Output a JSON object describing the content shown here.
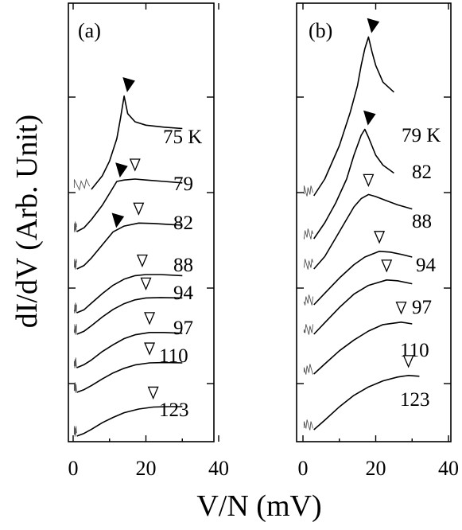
{
  "chart_data": [
    {
      "type": "line",
      "panel_label": "(a)",
      "xlabel": "V/N (mV)",
      "ylabel": "dI/dV (Arb. Unit)",
      "xlim": [
        0,
        40
      ],
      "x_ticks": [
        "0",
        "20",
        "40"
      ],
      "y_tick_labels": false,
      "offset_curves": true,
      "series": [
        {
          "name": "75 K",
          "peak": {
            "x": 14,
            "marker": "filled"
          },
          "x": [
            5,
            8,
            10,
            12,
            13,
            14,
            15,
            17,
            20,
            25,
            30
          ],
          "y": [
            0.0,
            0.2,
            0.42,
            0.75,
            1.05,
            1.38,
            1.12,
            1.0,
            0.95,
            0.92,
            0.9
          ]
        },
        {
          "name": "79",
          "peak": {
            "x": 12,
            "marker": "filled"
          },
          "gap": {
            "x": 17,
            "marker": "open"
          },
          "x": [
            1,
            3,
            5,
            8,
            10,
            12,
            14,
            17,
            20,
            25,
            30
          ],
          "y": [
            0.0,
            0.08,
            0.25,
            0.55,
            0.8,
            1.05,
            1.08,
            1.1,
            1.08,
            1.05,
            1.02
          ]
        },
        {
          "name": "82",
          "peak": {
            "x": 11,
            "marker": "filled"
          },
          "gap": {
            "x": 18,
            "marker": "open"
          },
          "x": [
            1,
            3,
            5,
            8,
            11,
            14,
            18,
            22,
            26,
            30
          ],
          "y": [
            0.0,
            0.08,
            0.25,
            0.55,
            0.85,
            0.98,
            1.05,
            1.04,
            1.02,
            1.0
          ]
        },
        {
          "name": "88",
          "gap": {
            "x": 19,
            "marker": "open"
          },
          "x": [
            1,
            3,
            5,
            8,
            11,
            14,
            17,
            20,
            24,
            30
          ],
          "y": [
            0.0,
            0.08,
            0.25,
            0.5,
            0.72,
            0.88,
            0.97,
            1.0,
            1.0,
            0.97
          ]
        },
        {
          "name": "94",
          "gap": {
            "x": 20,
            "marker": "open"
          },
          "x": [
            1,
            3,
            5,
            8,
            11,
            14,
            17,
            20,
            24,
            30
          ],
          "y": [
            0.0,
            0.08,
            0.22,
            0.45,
            0.65,
            0.8,
            0.9,
            0.95,
            0.96,
            0.95
          ]
        },
        {
          "name": "97",
          "gap": {
            "x": 21,
            "marker": "open"
          },
          "x": [
            1,
            3,
            5,
            8,
            11,
            14,
            17,
            21,
            25,
            30
          ],
          "y": [
            0.0,
            0.08,
            0.2,
            0.42,
            0.6,
            0.76,
            0.86,
            0.92,
            0.92,
            0.9
          ]
        },
        {
          "name": "110",
          "gap": {
            "x": 21,
            "marker": "open"
          },
          "x": [
            1,
            3,
            5,
            8,
            11,
            14,
            17,
            21,
            25,
            30
          ],
          "y": [
            0.0,
            0.08,
            0.2,
            0.4,
            0.58,
            0.72,
            0.82,
            0.88,
            0.89,
            0.88
          ]
        },
        {
          "name": "123",
          "gap": {
            "x": 22,
            "marker": "open"
          },
          "x": [
            1,
            3,
            5,
            8,
            11,
            14,
            18,
            22,
            26,
            30
          ],
          "y": [
            0.0,
            0.08,
            0.2,
            0.4,
            0.56,
            0.7,
            0.81,
            0.87,
            0.88,
            0.88
          ]
        }
      ]
    },
    {
      "type": "line",
      "panel_label": "(b)",
      "xlabel": "V/N (mV)",
      "ylabel": "dI/dV (Arb. Unit)",
      "xlim": [
        0,
        40
      ],
      "x_ticks": [
        "0",
        "20",
        "40"
      ],
      "y_tick_labels": false,
      "offset_curves": true,
      "series": [
        {
          "name": "79 K",
          "peak": {
            "x": 18,
            "marker": "filled"
          },
          "x": [
            3,
            6,
            10,
            13,
            15,
            16,
            17,
            18,
            19,
            20,
            22,
            25
          ],
          "y": [
            0.0,
            0.5,
            1.5,
            2.5,
            3.3,
            3.9,
            4.4,
            4.75,
            4.3,
            3.9,
            3.4,
            3.1
          ]
        },
        {
          "name": "82",
          "peak": {
            "x": 17,
            "marker": "filled"
          },
          "x": [
            3,
            6,
            9,
            12,
            14,
            16,
            17,
            18,
            20,
            22,
            25
          ],
          "y": [
            0.0,
            0.4,
            0.9,
            1.5,
            2.1,
            2.6,
            2.75,
            2.55,
            2.1,
            1.85,
            1.65
          ]
        },
        {
          "name": "88",
          "gap": {
            "x": 18,
            "marker": "open"
          },
          "x": [
            3,
            6,
            9,
            12,
            14,
            16,
            18,
            20,
            23,
            26,
            30
          ],
          "y": [
            0.0,
            0.3,
            0.75,
            1.2,
            1.5,
            1.7,
            1.8,
            1.75,
            1.65,
            1.55,
            1.45
          ]
        },
        {
          "name": "94",
          "gap": {
            "x": 21,
            "marker": "open"
          },
          "x": [
            3,
            6,
            10,
            14,
            17,
            21,
            24,
            27,
            30
          ],
          "y": [
            0.0,
            0.3,
            0.7,
            1.05,
            1.25,
            1.4,
            1.38,
            1.32,
            1.25
          ]
        },
        {
          "name": "97",
          "gap": {
            "x": 23,
            "marker": "open"
          },
          "x": [
            3,
            6,
            10,
            14,
            18,
            23,
            26,
            30
          ],
          "y": [
            0.0,
            0.3,
            0.7,
            1.05,
            1.28,
            1.42,
            1.4,
            1.32
          ]
        },
        {
          "name": "110",
          "gap": {
            "x": 27,
            "marker": "open"
          },
          "x": [
            3,
            6,
            10,
            14,
            18,
            22,
            27,
            30
          ],
          "y": [
            0.0,
            0.28,
            0.65,
            0.95,
            1.2,
            1.38,
            1.45,
            1.4
          ]
        },
        {
          "name": "123",
          "gap": {
            "x": 29,
            "marker": "open"
          },
          "x": [
            3,
            6,
            10,
            14,
            18,
            22,
            26,
            29,
            32
          ],
          "y": [
            0.0,
            0.25,
            0.6,
            0.9,
            1.12,
            1.28,
            1.38,
            1.42,
            1.4
          ]
        }
      ]
    }
  ]
}
